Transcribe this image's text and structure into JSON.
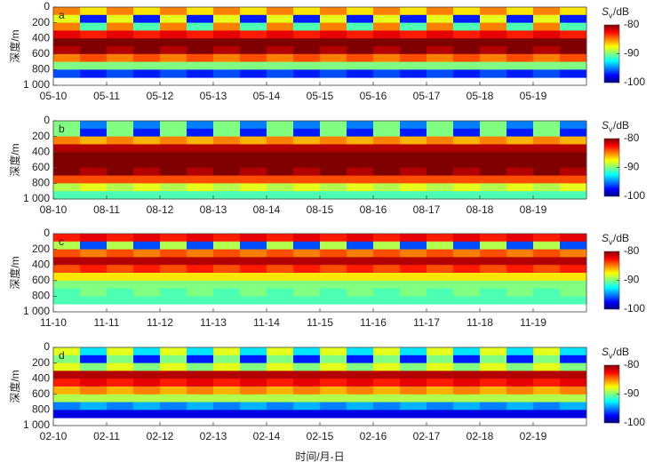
{
  "chart_data": [
    {
      "type": "heatmap",
      "label": "a",
      "ylabel": "深度/m",
      "categories": [
        "05-10",
        "05-11",
        "05-12",
        "05-13",
        "05-14",
        "05-15",
        "05-16",
        "05-17",
        "05-18",
        "05-19"
      ],
      "ylim": [
        0,
        1000
      ],
      "yticks": [
        0,
        200,
        400,
        600,
        800,
        {
          "value": 1000,
          "label": "1 000"
        }
      ],
      "depth_bins": [
        0,
        100,
        200,
        300,
        400,
        500,
        600,
        700,
        800,
        900,
        1000
      ],
      "z": [
        [
          -85,
          -87,
          -85,
          -87,
          -85,
          -87,
          -85,
          -87,
          -85,
          -87,
          -85,
          -87,
          -85,
          -87,
          -85,
          -87,
          -85,
          -87,
          -85,
          -87
        ],
        [
          -88,
          -97,
          -88,
          -97,
          -88,
          -97,
          -88,
          -97,
          -88,
          -97,
          -88,
          -97,
          -88,
          -97,
          -88,
          -97,
          -88,
          -97,
          -88,
          -97
        ],
        [
          -85,
          -91,
          -85,
          -91,
          -85,
          -91,
          -85,
          -91,
          -85,
          -91,
          -85,
          -91,
          -85,
          -91,
          -85,
          -91,
          -85,
          -91,
          -85,
          -91
        ],
        [
          -82,
          -83,
          -82,
          -83,
          -82,
          -83,
          -82,
          -83,
          -82,
          -83,
          -82,
          -83,
          -82,
          -83,
          -82,
          -83,
          -82,
          -83,
          -82,
          -83
        ],
        [
          -80,
          -80,
          -80,
          -80,
          -80,
          -80,
          -80,
          -80,
          -80,
          -80,
          -80,
          -80,
          -80,
          -80,
          -80,
          -80,
          -80,
          -80,
          -80,
          -80
        ],
        [
          -81,
          -80,
          -81,
          -80,
          -81,
          -80,
          -81,
          -80,
          -81,
          -80,
          -81,
          -80,
          -81,
          -80,
          -81,
          -80,
          -81,
          -80,
          -81,
          -80
        ],
        [
          -85,
          -84,
          -85,
          -84,
          -85,
          -84,
          -85,
          -84,
          -85,
          -84,
          -85,
          -84,
          -85,
          -84,
          -85,
          -84,
          -85,
          -84,
          -85,
          -84
        ],
        [
          -90,
          -90,
          -90,
          -90,
          -90,
          -90,
          -90,
          -90,
          -90,
          -90,
          -90,
          -90,
          -90,
          -90,
          -90,
          -90,
          -90,
          -90,
          -90,
          -90
        ],
        [
          -96,
          -97,
          -96,
          -97,
          -96,
          -97,
          -96,
          -97,
          -96,
          -97,
          -96,
          -97,
          -96,
          -97,
          -96,
          -97,
          -96,
          -97,
          -96,
          -97
        ],
        [
          null,
          null,
          null,
          null,
          null,
          null,
          null,
          null,
          null,
          null,
          null,
          null,
          null,
          null,
          null,
          null,
          null,
          null,
          null,
          null
        ]
      ],
      "clim": [
        -100,
        -80
      ],
      "cticks": [
        -80,
        -90,
        -100
      ],
      "colorbar_symbol": "S",
      "colorbar_subscript": "v",
      "colorbar_unit": "/dB",
      "colormap": [
        "#000080",
        "#0000ff",
        "#0080ff",
        "#00ffff",
        "#80ff80",
        "#ffff00",
        "#ff8000",
        "#ff0000",
        "#800000"
      ]
    },
    {
      "type": "heatmap",
      "label": "b",
      "ylabel": "深度/m",
      "categories": [
        "08-10",
        "08-11",
        "08-12",
        "08-13",
        "08-14",
        "08-15",
        "08-16",
        "08-17",
        "08-18",
        "08-19"
      ],
      "ylim": [
        0,
        1000
      ],
      "yticks": [
        0,
        200,
        400,
        600,
        800,
        {
          "value": 1000,
          "label": "1 000"
        }
      ],
      "depth_bins": [
        0,
        100,
        200,
        300,
        400,
        500,
        600,
        700,
        800,
        900,
        1000
      ],
      "z": [
        [
          -90,
          -95,
          -90,
          -95,
          -90,
          -95,
          -90,
          -95,
          -90,
          -95,
          -90,
          -95,
          -90,
          -95,
          -90,
          -95,
          -90,
          -95,
          -90,
          -95
        ],
        [
          -90,
          -97,
          -90,
          -97,
          -90,
          -97,
          -90,
          -97,
          -90,
          -97,
          -90,
          -97,
          -90,
          -97,
          -90,
          -97,
          -90,
          -97,
          -90,
          -97
        ],
        [
          -85,
          -86,
          -85,
          -86,
          -85,
          -86,
          -85,
          -86,
          -85,
          -86,
          -85,
          -86,
          -85,
          -86,
          -85,
          -86,
          -85,
          -86,
          -85,
          -86
        ],
        [
          -81,
          -81,
          -81,
          -81,
          -81,
          -81,
          -81,
          -81,
          -81,
          -81,
          -81,
          -81,
          -81,
          -81,
          -81,
          -81,
          -81,
          -81,
          -81,
          -81
        ],
        [
          -80,
          -80,
          -80,
          -80,
          -80,
          -80,
          -80,
          -80,
          -80,
          -80,
          -80,
          -80,
          -80,
          -80,
          -80,
          -80,
          -80,
          -80,
          -80,
          -80
        ],
        [
          -80,
          -80,
          -80,
          -80,
          -80,
          -80,
          -80,
          -80,
          -80,
          -80,
          -80,
          -80,
          -80,
          -80,
          -80,
          -80,
          -80,
          -80,
          -80,
          -80
        ],
        [
          -80,
          -81,
          -80,
          -81,
          -80,
          -81,
          -80,
          -81,
          -80,
          -81,
          -80,
          -81,
          -80,
          -81,
          -80,
          -81,
          -80,
          -81,
          -80,
          -81
        ],
        [
          -84,
          -84,
          -84,
          -84,
          -84,
          -84,
          -84,
          -84,
          -84,
          -84,
          -84,
          -84,
          -84,
          -84,
          -84,
          -84,
          -84,
          -84,
          -84,
          -84
        ],
        [
          -89,
          -88,
          -89,
          -88,
          -89,
          -88,
          -89,
          -88,
          -89,
          -88,
          -89,
          -88,
          -89,
          -88,
          -89,
          -88,
          -89,
          -88,
          -89,
          -88
        ],
        [
          -91,
          -91,
          -91,
          -91,
          -91,
          -91,
          -91,
          -91,
          -91,
          -91,
          -91,
          -91,
          -91,
          -91,
          -91,
          -91,
          -91,
          -91,
          -91,
          -91
        ]
      ],
      "clim": [
        -100,
        -80
      ],
      "cticks": [
        -80,
        -90,
        -100
      ],
      "colorbar_symbol": "S",
      "colorbar_subscript": "v",
      "colorbar_unit": "/dB",
      "colormap": [
        "#000080",
        "#0000ff",
        "#0080ff",
        "#00ffff",
        "#80ff80",
        "#ffff00",
        "#ff8000",
        "#ff0000",
        "#800000"
      ]
    },
    {
      "type": "heatmap",
      "label": "c",
      "ylabel": "深度/m",
      "categories": [
        "11-10",
        "11-11",
        "11-12",
        "11-13",
        "11-14",
        "11-15",
        "11-16",
        "11-17",
        "11-18",
        "11-19"
      ],
      "ylim": [
        0,
        1000
      ],
      "yticks": [
        0,
        200,
        400,
        600,
        800,
        {
          "value": 1000,
          "label": "1 000"
        }
      ],
      "depth_bins": [
        0,
        100,
        200,
        300,
        400,
        500,
        600,
        700,
        800,
        900,
        1000
      ],
      "z": [
        [
          -83,
          -82,
          -83,
          -82,
          -83,
          -82,
          -83,
          -82,
          -83,
          -82,
          -83,
          -82,
          -83,
          -82,
          -83,
          -82,
          -83,
          -82,
          -83,
          -82
        ],
        [
          -89,
          -96,
          -89,
          -96,
          -89,
          -96,
          -89,
          -96,
          -89,
          -96,
          -89,
          -96,
          -89,
          -96,
          -89,
          -96,
          -89,
          -96,
          -89,
          -96
        ],
        [
          -84,
          -85,
          -84,
          -85,
          -84,
          -85,
          -84,
          -85,
          -84,
          -85,
          -84,
          -85,
          -84,
          -85,
          -84,
          -85,
          -84,
          -85,
          -84,
          -85
        ],
        [
          -81,
          -81,
          -81,
          -81,
          -81,
          -81,
          -81,
          -81,
          -81,
          -81,
          -81,
          -81,
          -81,
          -81,
          -81,
          -81,
          -81,
          -81,
          -81,
          -81
        ],
        [
          -84,
          -83,
          -84,
          -83,
          -84,
          -83,
          -84,
          -83,
          -84,
          -83,
          -84,
          -83,
          -84,
          -83,
          -84,
          -83,
          -84,
          -83,
          -84,
          -83
        ],
        [
          -87,
          -87,
          -87,
          -87,
          -87,
          -87,
          -87,
          -87,
          -87,
          -87,
          -87,
          -87,
          -87,
          -87,
          -87,
          -87,
          -87,
          -87,
          -87,
          -87
        ],
        [
          -90,
          -90,
          -90,
          -90,
          -90,
          -90,
          -90,
          -90,
          -90,
          -90,
          -90,
          -90,
          -90,
          -90,
          -90,
          -90,
          -90,
          -90,
          -90,
          -90
        ],
        [
          -91,
          -90,
          -91,
          -90,
          -91,
          -90,
          -91,
          -90,
          -91,
          -90,
          -91,
          -90,
          -91,
          -90,
          -91,
          -90,
          -91,
          -90,
          -91,
          -90
        ],
        [
          -91,
          -91,
          -91,
          -91,
          -91,
          -91,
          -91,
          -91,
          -91,
          -91,
          -91,
          -91,
          -91,
          -91,
          -91,
          -91,
          -91,
          -91,
          -91,
          -91
        ],
        [
          null,
          null,
          null,
          null,
          null,
          null,
          null,
          null,
          null,
          null,
          null,
          null,
          null,
          null,
          null,
          null,
          null,
          null,
          null,
          null
        ]
      ],
      "clim": [
        -100,
        -80
      ],
      "cticks": [
        -80,
        -90,
        -100
      ],
      "colorbar_symbol": "S",
      "colorbar_subscript": "v",
      "colorbar_unit": "/dB",
      "colormap": [
        "#000080",
        "#0000ff",
        "#0080ff",
        "#00ffff",
        "#80ff80",
        "#ffff00",
        "#ff8000",
        "#ff0000",
        "#800000"
      ]
    },
    {
      "type": "heatmap",
      "label": "d",
      "ylabel": "深度/m",
      "xlabel": "时间/月-日",
      "categories": [
        "02-10",
        "02-11",
        "02-12",
        "02-13",
        "02-14",
        "02-15",
        "02-16",
        "02-17",
        "02-18",
        "02-19"
      ],
      "ylim": [
        0,
        1000
      ],
      "yticks": [
        0,
        200,
        400,
        600,
        800,
        {
          "value": 1000,
          "label": "1 000"
        }
      ],
      "depth_bins": [
        0,
        100,
        200,
        300,
        400,
        500,
        600,
        700,
        800,
        900,
        1000
      ],
      "z": [
        [
          -88,
          -93,
          -88,
          -93,
          -88,
          -93,
          -88,
          -93,
          -88,
          -93,
          -88,
          -93,
          -88,
          -93,
          -88,
          -93,
          -88,
          -93,
          -88,
          -93
        ],
        [
          -90,
          -97,
          -90,
          -97,
          -90,
          -97,
          -90,
          -97,
          -90,
          -97,
          -90,
          -97,
          -90,
          -97,
          -90,
          -97,
          -90,
          -97,
          -90,
          -97
        ],
        [
          -88,
          -90,
          -88,
          -90,
          -88,
          -90,
          -88,
          -90,
          -88,
          -90,
          -88,
          -90,
          -88,
          -90,
          -88,
          -90,
          -88,
          -90,
          -88,
          -90
        ],
        [
          -81,
          -81,
          -81,
          -81,
          -81,
          -81,
          -81,
          -81,
          -81,
          -81,
          -81,
          -81,
          -81,
          -81,
          -81,
          -81,
          -81,
          -81,
          -81,
          -81
        ],
        [
          -83,
          -82,
          -83,
          -82,
          -83,
          -82,
          -83,
          -82,
          -83,
          -82,
          -83,
          -82,
          -83,
          -82,
          -83,
          -82,
          -83,
          -82,
          -83,
          -82
        ],
        [
          -86,
          -85,
          -86,
          -85,
          -86,
          -85,
          -86,
          -85,
          -86,
          -85,
          -86,
          -85,
          -86,
          -85,
          -86,
          -85,
          -86,
          -85,
          -86,
          -85
        ],
        [
          -89,
          -89,
          -89,
          -89,
          -89,
          -89,
          -89,
          -89,
          -89,
          -89,
          -89,
          -89,
          -89,
          -89,
          -89,
          -89,
          -89,
          -89,
          -89,
          -89
        ],
        [
          -95,
          -94,
          -95,
          -94,
          -95,
          -94,
          -95,
          -94,
          -95,
          -94,
          -95,
          -94,
          -95,
          -94,
          -95,
          -94,
          -95,
          -94,
          -95,
          -94
        ],
        [
          -98,
          -98,
          -98,
          -98,
          -98,
          -98,
          -98,
          -98,
          -98,
          -98,
          -98,
          -98,
          -98,
          -98,
          -98,
          -98,
          -98,
          -98,
          -98,
          -98
        ],
        [
          null,
          null,
          null,
          null,
          null,
          null,
          null,
          null,
          null,
          null,
          null,
          null,
          null,
          null,
          null,
          null,
          null,
          null,
          null,
          null
        ]
      ],
      "clim": [
        -100,
        -80
      ],
      "cticks": [
        -80,
        -90,
        -100
      ],
      "colorbar_symbol": "S",
      "colorbar_subscript": "v",
      "colorbar_unit": "/dB",
      "colormap": [
        "#000080",
        "#0000ff",
        "#0080ff",
        "#00ffff",
        "#80ff80",
        "#ffff00",
        "#ff8000",
        "#ff0000",
        "#800000"
      ]
    }
  ]
}
